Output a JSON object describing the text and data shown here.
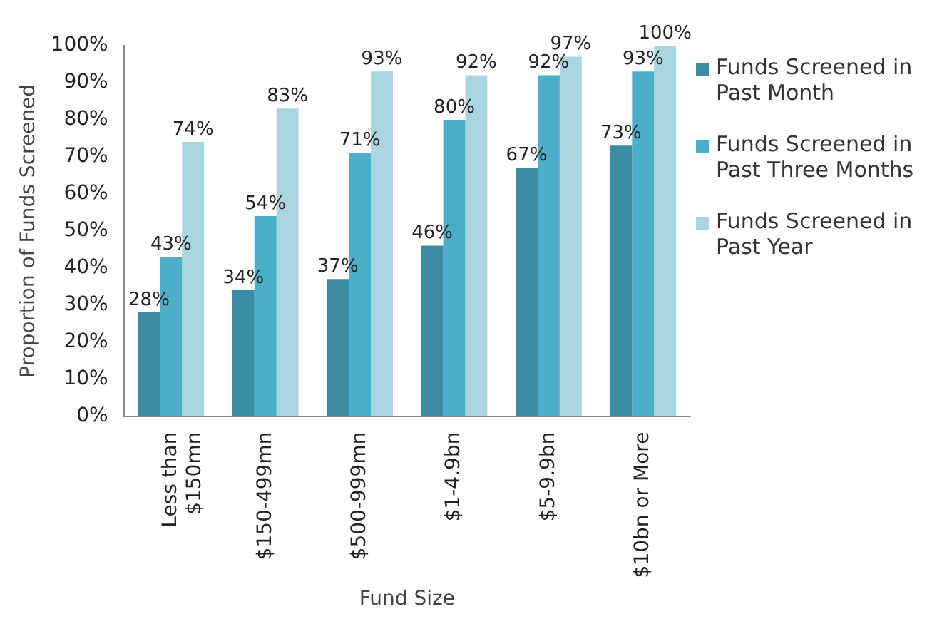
{
  "chart_data": {
    "type": "bar",
    "xlabel": "Fund Size",
    "ylabel": "Proportion of Funds Screened",
    "categories": [
      "Less than $150mn",
      "$150-499mn",
      "$500-999mn",
      "$1-4.9bn",
      "$5-9.9bn",
      "$10bn or More"
    ],
    "series": [
      {
        "name": "Funds Screened in Past Month",
        "color": "#3a8ba4",
        "values": [
          28,
          34,
          37,
          46,
          67,
          73
        ],
        "value_labels": [
          "28%",
          "34%",
          "37%",
          "46%",
          "67%",
          "73%"
        ]
      },
      {
        "name": "Funds Screened in Past Three Months",
        "color": "#4bafc9",
        "values": [
          43,
          54,
          71,
          80,
          92,
          93
        ],
        "value_labels": [
          "43%",
          "54%",
          "71%",
          "80%",
          "92%",
          "93%"
        ]
      },
      {
        "name": "Funds Screened in Past Year",
        "color": "#a9d5e1",
        "values": [
          74,
          83,
          93,
          92,
          97,
          100
        ],
        "value_labels": [
          "74%",
          "83%",
          "93%",
          "92%",
          "97%",
          "100%"
        ]
      }
    ],
    "ylim": [
      0,
      100
    ],
    "yticks": [
      {
        "value": 0,
        "label": "0%"
      },
      {
        "value": 10,
        "label": "10%"
      },
      {
        "value": 20,
        "label": "20%"
      },
      {
        "value": 30,
        "label": "30%"
      },
      {
        "value": 40,
        "label": "40%"
      },
      {
        "value": 50,
        "label": "50%"
      },
      {
        "value": 60,
        "label": "60%"
      },
      {
        "value": 70,
        "label": "70%"
      },
      {
        "value": 80,
        "label": "80%"
      },
      {
        "value": 90,
        "label": "90%"
      },
      {
        "value": 100,
        "label": "100%"
      }
    ],
    "grid": false,
    "legend": "right"
  }
}
